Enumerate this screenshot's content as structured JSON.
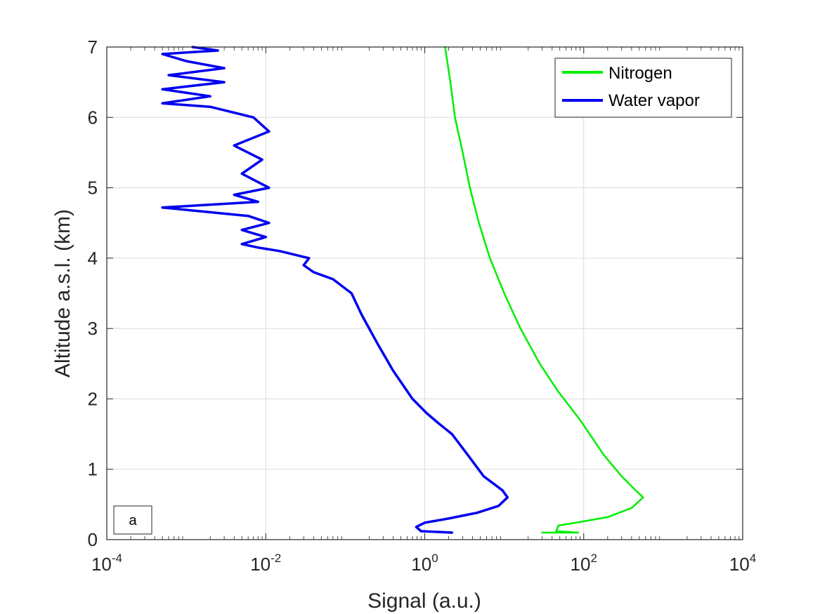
{
  "chart_data": {
    "type": "line",
    "title": "",
    "xlabel": "Signal (a.u.)",
    "ylabel": "Altitude a.s.l. (km)",
    "xscale": "log",
    "xlim": [
      0.0001,
      10000
    ],
    "ylim": [
      0,
      7
    ],
    "x_ticks": [
      {
        "base": "10",
        "exp": "-4",
        "value": 0.0001
      },
      {
        "base": "10",
        "exp": "-2",
        "value": 0.01
      },
      {
        "base": "10",
        "exp": "0",
        "value": 1
      },
      {
        "base": "10",
        "exp": "2",
        "value": 100
      },
      {
        "base": "10",
        "exp": "4",
        "value": 10000
      }
    ],
    "y_ticks": [
      "0",
      "1",
      "2",
      "3",
      "4",
      "5",
      "6",
      "7"
    ],
    "grid": true,
    "legend_position": "top-right",
    "panel_label": "a",
    "series": [
      {
        "name": "Nitrogen",
        "color": "#00ee00",
        "points": [
          [
            30,
            0.1
          ],
          [
            85,
            0.1
          ],
          [
            45,
            0.12
          ],
          [
            48,
            0.2
          ],
          [
            90,
            0.25
          ],
          [
            200,
            0.32
          ],
          [
            400,
            0.45
          ],
          [
            560,
            0.6
          ],
          [
            450,
            0.7
          ],
          [
            300,
            0.9
          ],
          [
            180,
            1.2
          ],
          [
            90,
            1.7
          ],
          [
            48,
            2.1
          ],
          [
            28,
            2.5
          ],
          [
            16,
            3.0
          ],
          [
            10,
            3.5
          ],
          [
            6.6,
            4.0
          ],
          [
            4.8,
            4.5
          ],
          [
            3.7,
            5.0
          ],
          [
            3.0,
            5.5
          ],
          [
            2.4,
            6.0
          ],
          [
            2.1,
            6.5
          ],
          [
            1.8,
            7.0
          ]
        ]
      },
      {
        "name": "Water vapor",
        "color": "#0000ee",
        "points": [
          [
            2.2,
            0.1
          ],
          [
            0.9,
            0.12
          ],
          [
            0.78,
            0.18
          ],
          [
            1.0,
            0.24
          ],
          [
            2.0,
            0.3
          ],
          [
            4.5,
            0.38
          ],
          [
            8.5,
            0.48
          ],
          [
            11,
            0.6
          ],
          [
            9.5,
            0.7
          ],
          [
            5.5,
            0.9
          ],
          [
            3.5,
            1.2
          ],
          [
            2.2,
            1.5
          ],
          [
            1.5,
            1.65
          ],
          [
            1.05,
            1.8
          ],
          [
            0.7,
            2.0
          ],
          [
            0.4,
            2.4
          ],
          [
            0.25,
            2.8
          ],
          [
            0.16,
            3.2
          ],
          [
            0.12,
            3.5
          ],
          [
            0.07,
            3.7
          ],
          [
            0.04,
            3.8
          ],
          [
            0.03,
            3.9
          ],
          [
            0.035,
            4.0
          ],
          [
            0.015,
            4.1
          ],
          [
            0.008,
            4.15
          ],
          [
            0.005,
            4.2
          ],
          [
            0.01,
            4.3
          ],
          [
            0.005,
            4.4
          ],
          [
            0.011,
            4.5
          ],
          [
            0.006,
            4.6
          ],
          [
            0.0005,
            4.72
          ],
          [
            0.008,
            4.8
          ],
          [
            0.004,
            4.9
          ],
          [
            0.011,
            5.0
          ],
          [
            0.005,
            5.2
          ],
          [
            0.009,
            5.4
          ],
          [
            0.004,
            5.6
          ],
          [
            0.011,
            5.8
          ],
          [
            0.007,
            6.0
          ],
          [
            0.002,
            6.15
          ],
          [
            0.0005,
            6.2
          ],
          [
            0.002,
            6.3
          ],
          [
            0.0005,
            6.4
          ],
          [
            0.003,
            6.5
          ],
          [
            0.0006,
            6.6
          ],
          [
            0.003,
            6.7
          ],
          [
            0.001,
            6.8
          ],
          [
            0.0005,
            6.9
          ],
          [
            0.0025,
            6.95
          ],
          [
            0.0012,
            7.0
          ]
        ]
      }
    ]
  }
}
